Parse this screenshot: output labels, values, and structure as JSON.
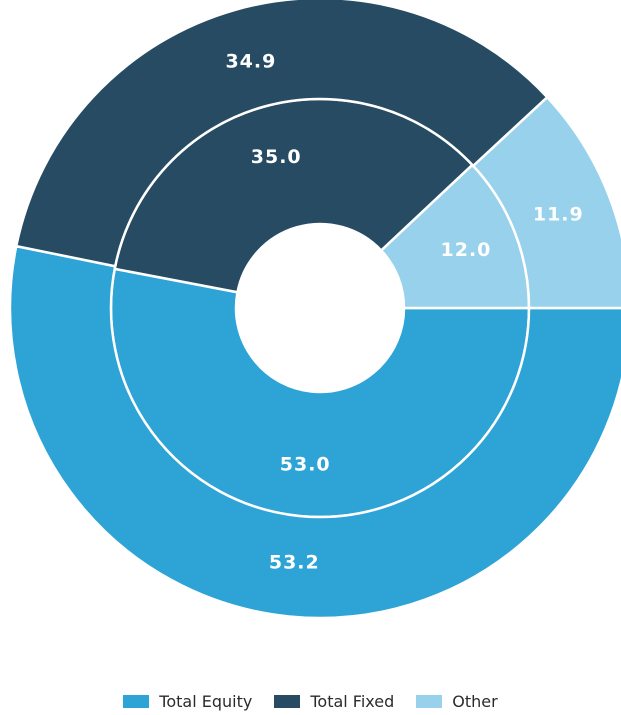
{
  "chart_data": {
    "type": "pie",
    "variant": "nested-donut",
    "categories": [
      "Total Equity",
      "Total Fixed",
      "Other"
    ],
    "colors": [
      "#2ea3d6",
      "#264b63",
      "#98d1eb"
    ],
    "series": [
      {
        "ring": "inner",
        "values": [
          53.0,
          35.0,
          12.0
        ],
        "labels": [
          "53.0",
          "35.0",
          "12.0"
        ]
      },
      {
        "ring": "outer",
        "values": [
          53.2,
          34.9,
          11.9
        ],
        "labels": [
          "53.2",
          "34.9",
          "11.9"
        ]
      }
    ],
    "legend": {
      "position": "bottom",
      "items": [
        "Total Equity",
        "Total Fixed",
        "Other"
      ]
    }
  }
}
